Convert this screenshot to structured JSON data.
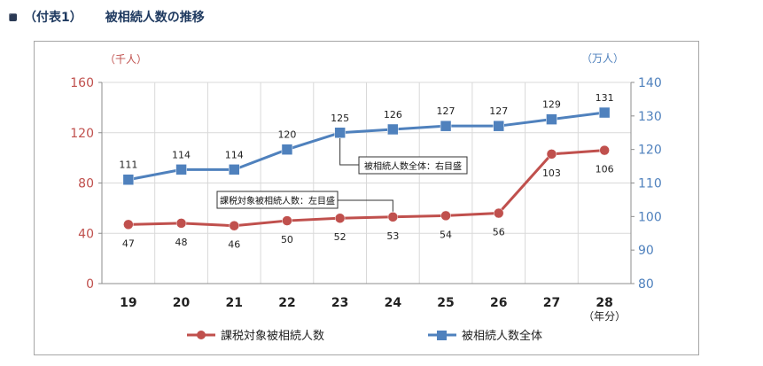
{
  "heading": {
    "prefix": "（付表1）",
    "title": "被相続人数の推移"
  },
  "colors": {
    "heading": "#1f3a60",
    "left_axis": "#c0504d",
    "right_axis": "#4f81bd",
    "series_taxable": "#c0504d",
    "series_total": "#4f81bd",
    "grid": "#d9d9d9",
    "border": "#a6a6a6"
  },
  "chart_data": {
    "type": "line",
    "title": "",
    "x_unit_label": "（年分）",
    "categories": [
      "19",
      "20",
      "21",
      "22",
      "23",
      "24",
      "25",
      "26",
      "27",
      "28"
    ],
    "left_axis": {
      "unit_label": "（千人）",
      "ylim": [
        0,
        160
      ],
      "ticks": [
        "0",
        "40",
        "80",
        "120",
        "160"
      ]
    },
    "right_axis": {
      "unit_label": "（万人）",
      "ylim": [
        80,
        140
      ],
      "ticks": [
        "80",
        "90",
        "100",
        "110",
        "120",
        "130",
        "140"
      ]
    },
    "grid": true,
    "legend_position": "bottom",
    "series": [
      {
        "name": "課税対象被相続人数",
        "axis": "left",
        "marker": "circle",
        "color": "#c0504d",
        "values": [
          47,
          48,
          46,
          50,
          52,
          53,
          54,
          56,
          103,
          106
        ],
        "labels": [
          "47",
          "48",
          "46",
          "50",
          "52",
          "53",
          "54",
          "56",
          "103",
          "106"
        ]
      },
      {
        "name": "被相続人数全体",
        "axis": "right",
        "marker": "square",
        "color": "#4f81bd",
        "values": [
          111,
          114,
          114,
          120,
          125,
          126,
          127,
          127,
          129,
          131
        ],
        "labels": [
          "111",
          "114",
          "114",
          "120",
          "125",
          "126",
          "127",
          "127",
          "129",
          "131"
        ]
      }
    ],
    "callouts": [
      {
        "text": "被相続人数全体：右目盛",
        "series": 1
      },
      {
        "text": "課税対象被相続人数：左目盛",
        "series": 0
      }
    ]
  }
}
